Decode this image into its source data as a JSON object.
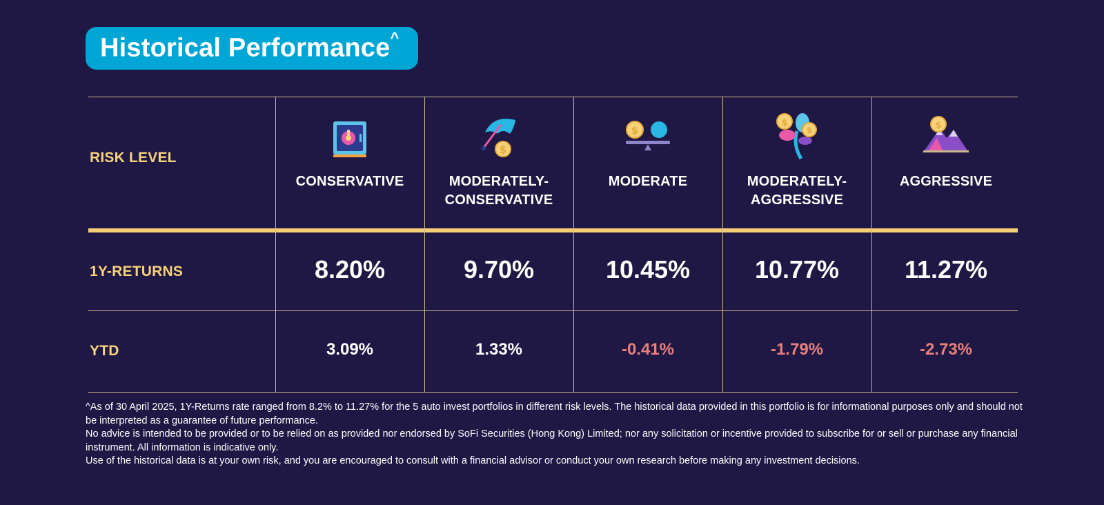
{
  "title": {
    "text": "Historical Performance",
    "sup": "^"
  },
  "table": {
    "row_labels": {
      "risk_level": "RISK LEVEL",
      "returns_1y": "1Y-RETURNS",
      "ytd": "YTD"
    },
    "columns": [
      {
        "name_line1": "CONSERVATIVE",
        "name_line2": "",
        "icon": "safe-icon",
        "returns_1y": "8.20%",
        "ytd": "3.09%",
        "ytd_color": "#ffffff"
      },
      {
        "name_line1": "MODERATELY-",
        "name_line2": "CONSERVATIVE",
        "icon": "umbrella-coin-icon",
        "returns_1y": "9.70%",
        "ytd": "1.33%",
        "ytd_color": "#ffffff"
      },
      {
        "name_line1": "MODERATE",
        "name_line2": "",
        "icon": "balance-scale-icon",
        "returns_1y": "10.45%",
        "ytd": "-0.41%",
        "ytd_color": "#e8807b"
      },
      {
        "name_line1": "MODERATELY-",
        "name_line2": "AGGRESSIVE",
        "icon": "flower-coins-icon",
        "returns_1y": "10.77%",
        "ytd": "-1.79%",
        "ytd_color": "#e8807b"
      },
      {
        "name_line1": "AGGRESSIVE",
        "name_line2": "",
        "icon": "mountain-coin-icon",
        "returns_1y": "11.27%",
        "ytd": "-2.73%",
        "ytd_color": "#e8807b"
      }
    ]
  },
  "footnote": [
    "^As of 30 April 2025, 1Y-Returns rate ranged from 8.2% to 11.27% for the 5 auto invest portfolios in different risk levels. The historical data provided in this portfolio is for informational purposes only and should not be interpreted as a guarantee of future performance.",
    "No advice is intended to be provided or to be relied on as provided nor endorsed by SoFi Securities (Hong Kong) Limited; nor any solicitation or incentive provided to subscribe for or sell or purchase any financial instrument. All information is indicative only.",
    "Use of the historical data is at your own risk, and you are encouraged to consult with a financial advisor or conduct your own research before making any investment decisions."
  ],
  "colors": {
    "background": "#1f1744",
    "accent": "#00a6d6",
    "label": "#f6d27b",
    "negative": "#e8807b",
    "divider": "#f3cf76"
  }
}
